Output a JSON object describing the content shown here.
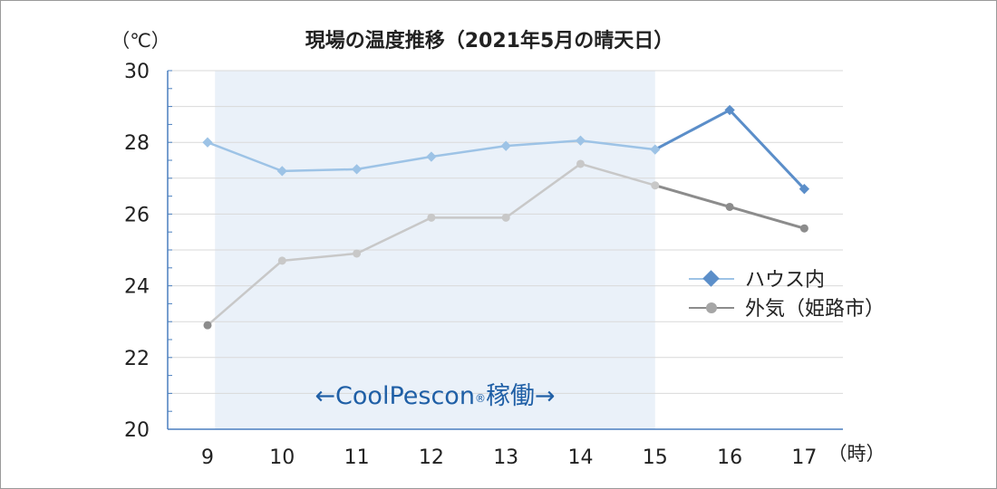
{
  "chart_data": {
    "type": "line",
    "title": "現場の温度推移（2021年5月の晴天日）",
    "ylabel": "（℃）",
    "xlabel": "（時）",
    "x": [
      9,
      10,
      11,
      12,
      13,
      14,
      15,
      16,
      17
    ],
    "ylim": [
      20,
      30
    ],
    "y_ticks": [
      "20",
      "22",
      "24",
      "26",
      "28",
      "30"
    ],
    "x_ticks": [
      "9",
      "10",
      "11",
      "12",
      "13",
      "14",
      "15",
      "16",
      "17"
    ],
    "grid": true,
    "legend_position": "right",
    "series": [
      {
        "name": "ハウス内",
        "values": [
          28.0,
          27.2,
          27.25,
          27.6,
          27.9,
          28.05,
          27.8,
          28.9,
          26.7
        ],
        "color": "#9dc3e6",
        "highlight_color": "#5b8ec9",
        "marker": "diamond"
      },
      {
        "name": "外気（姫路市）",
        "values": [
          22.9,
          24.7,
          24.9,
          25.9,
          25.9,
          27.4,
          26.8,
          26.2,
          25.6
        ],
        "color": "#c8c8c8",
        "highlight_color": "#8c8c8c",
        "marker": "circle"
      }
    ],
    "band": {
      "from": 9.1,
      "to": 15,
      "color": "#eaf1f9",
      "label_left": "←CoolPescon",
      "label_reg": "®",
      "label_right": "稼働→"
    }
  }
}
